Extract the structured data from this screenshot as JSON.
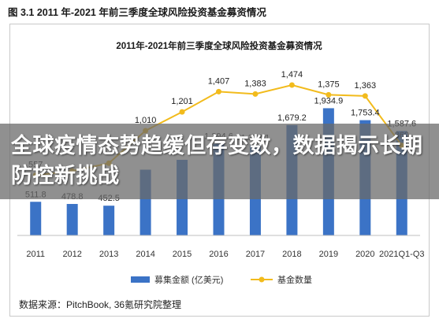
{
  "figure": {
    "label": "图 3.1 2011 年-2021 年前三季度全球风险投资基金募资情况",
    "source": "数据来源：PitchBook, 36氪研究院整理"
  },
  "overlay": {
    "headline": "全球疫情态势趋缓但存变数，数据揭示长期防控新挑战"
  },
  "colors": {
    "bar": "#3b73c6",
    "line": "#f2bb1c",
    "banner": "#6e6e6e"
  },
  "chart_data": {
    "type": "bar",
    "title": "2011年-2021年前三季度全球风险投资基金募资情况",
    "categories": [
      "2011",
      "2012",
      "2013",
      "2014",
      "2015",
      "2016",
      "2017",
      "2018",
      "2019",
      "2020",
      "2021Q1-Q3"
    ],
    "series": [
      {
        "name": "募集金额 (亿美元)",
        "type": "bar",
        "values": [
          511.8,
          478.8,
          452.5,
          1000,
          1150,
          1394.6,
          1373.1,
          1679.2,
          1934.9,
          1753.4,
          1587.6
        ],
        "labels": [
          "511.8",
          "478.8",
          "452.5",
          "",
          "",
          "1,394.6",
          "1,373.1",
          "1,679.2",
          "1,934.9",
          "1,753.4",
          "1,587.6"
        ]
      },
      {
        "name": "基金数量",
        "type": "line",
        "values": [
          557,
          600,
          680,
          1010,
          1201,
          1407,
          1383,
          1474,
          1375,
          1363,
          860
        ],
        "labels": [
          "557",
          "",
          "",
          "1,010",
          "1,201",
          "1,407",
          "1,383",
          "1,474",
          "1,375",
          "1,363",
          "860"
        ]
      }
    ],
    "legend_position": "bottom",
    "grid": false
  }
}
